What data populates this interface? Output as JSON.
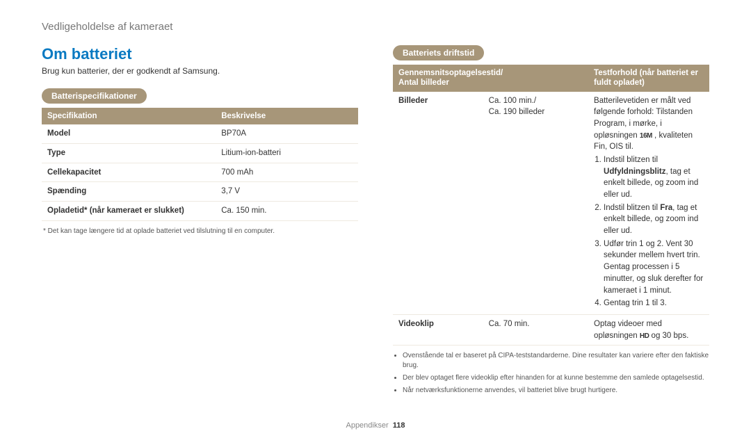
{
  "header": "Vedligeholdelse af kameraet",
  "title": "Om batteriet",
  "intro": "Brug kun batterier, der er godkendt af Samsung.",
  "spec_pill": "Batterispecifikationer",
  "spec_table": {
    "head": [
      "Specifikation",
      "Beskrivelse"
    ],
    "rows": [
      [
        "Model",
        "BP70A"
      ],
      [
        "Type",
        "Litium-ion-batteri"
      ],
      [
        "Cellekapacitet",
        "700 mAh"
      ],
      [
        "Spænding",
        "3,7 V"
      ],
      [
        "Opladetid* (når kameraet er slukket)",
        "Ca. 150 min."
      ]
    ]
  },
  "spec_note": "* Det kan tage længere tid at oplade batteriet ved tilslutning til en computer.",
  "rt_pill": "Batteriets driftstid",
  "rt_table": {
    "head": [
      "Gennemsnitsoptagelsestid/\nAntal billeder",
      "Testforhold (når batteriet er fuldt opladet)"
    ],
    "head_col0_a": "Gennemsnitsoptagelsestid/",
    "head_col0_b": "Antal billeder",
    "head_col1": "Testforhold (når batteriet er fuldt opladet)"
  },
  "rt_row1": {
    "c0": "Billeder",
    "c1": "Ca. 100 min./\nCa. 190 billeder",
    "lead": "Batterilevetiden er målt ved følgende forhold: Tilstanden Program, i mørke, i opløsningen ",
    "lead_icon": "16M",
    "lead_tail": " , kvaliteten Fin, OIS til.",
    "s1a": "Indstil blitzen til ",
    "s1b": "Udfyldningsblitz",
    "s1c": ", tag et enkelt billede, og zoom ind eller ud.",
    "s2a": "Indstil blitzen til ",
    "s2b": "Fra",
    "s2c": ", tag et enkelt billede, og zoom ind eller ud.",
    "s3": "Udfør trin 1 og 2. Vent 30 sekunder mellem hvert trin. Gentag processen i 5 minutter, og sluk derefter for kameraet i 1 minut.",
    "s4": "Gentag trin 1 til 3."
  },
  "rt_row2": {
    "c0": "Videoklip",
    "c1": "Ca. 70 min.",
    "c2_a": "Optag videoer med opløsningen ",
    "c2_icon": "HD",
    "c2_b": " og 30 bps."
  },
  "rt_bullets": [
    "Ovenstående tal er baseret på CIPA-teststandarderne. Dine resultater kan variere efter den faktiske brug.",
    "Der blev optaget flere videoklip efter hinanden for at kunne bestemme den samlede optagelsestid.",
    "Når netværksfunktionerne anvendes, vil batteriet blive brugt hurtigere."
  ],
  "footer_label": "Appendikser",
  "footer_page": "118",
  "colors": {
    "accent_blue": "#0a7ac2",
    "pill_bg": "#a79679",
    "row_border": "#eee9e0"
  }
}
